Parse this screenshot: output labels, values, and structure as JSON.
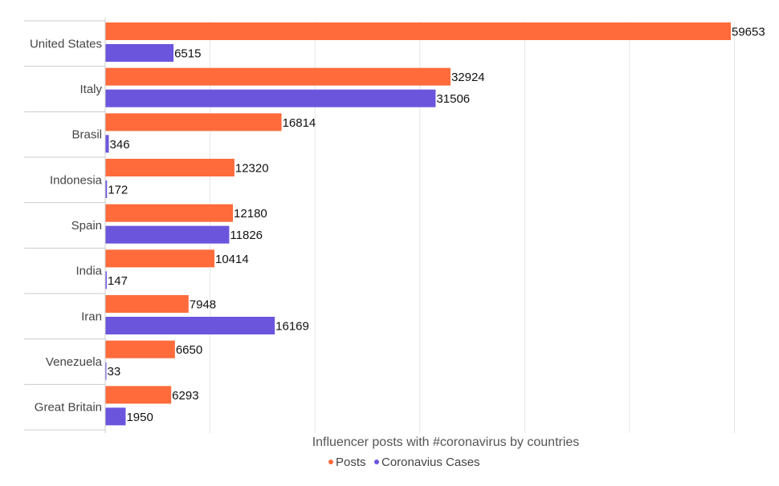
{
  "chart_data": {
    "type": "bar",
    "orientation": "horizontal",
    "title": "",
    "xlabel": "Influencer posts with #coronavirus by countries",
    "ylabel": "",
    "xlim": [
      0,
      60000
    ],
    "grid": true,
    "legend_position": "bottom",
    "categories": [
      "United States",
      "Italy",
      "Brasil",
      "Indonesia",
      "Spain",
      "India",
      "Iran",
      "Venezuela",
      "Great Britain"
    ],
    "series": [
      {
        "name": "Posts",
        "color": "#ff6b3b",
        "values": [
          59653,
          32924,
          16814,
          12320,
          12180,
          10414,
          7948,
          6650,
          6293
        ]
      },
      {
        "name": "Coronavius Cases",
        "color": "#6b55dd",
        "values": [
          6515,
          31506,
          346,
          172,
          11826,
          147,
          16169,
          33,
          1950
        ]
      }
    ]
  }
}
